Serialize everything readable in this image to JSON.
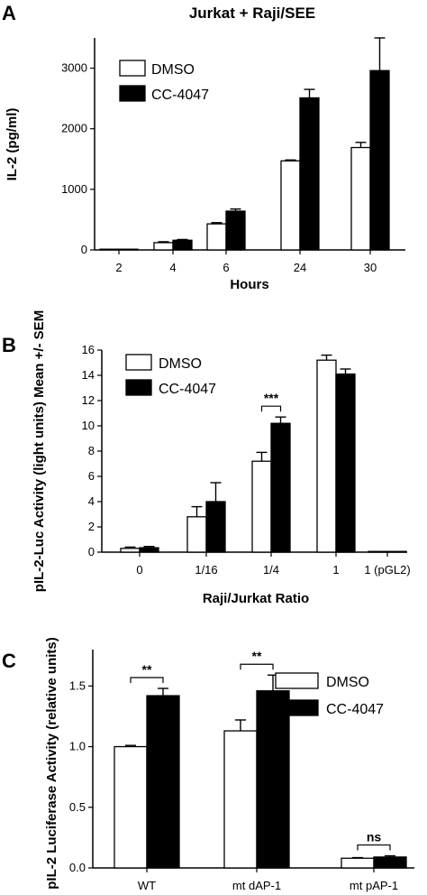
{
  "chart_data": [
    {
      "panel": "A",
      "type": "bar",
      "title": "Jurkat + Raji/SEE",
      "xlabel": "Hours",
      "ylabel": "IL-2 (pg/ml)",
      "ylim": [
        0,
        3500
      ],
      "yticks": [
        0,
        1000,
        2000,
        3000
      ],
      "categories": [
        "2",
        "4",
        "6",
        "24",
        "30"
      ],
      "legend_placement": "top-left",
      "series": [
        {
          "name": "DMSO",
          "color": "#ffffff",
          "values": [
            0,
            120,
            430,
            1470,
            1690
          ],
          "errors": [
            0,
            15,
            20,
            15,
            85
          ]
        },
        {
          "name": "CC-4047",
          "color": "#000000",
          "values": [
            0,
            160,
            640,
            2510,
            2960
          ],
          "errors": [
            0,
            12,
            35,
            140,
            540
          ]
        }
      ],
      "annotations": []
    },
    {
      "panel": "B",
      "type": "bar",
      "title": "",
      "xlabel": "Raji/Jurkat Ratio",
      "ylabel": "pIL-2-Luc Activity (light units) Mean +/- SEM",
      "ylim": [
        0,
        16
      ],
      "yticks": [
        0,
        2,
        4,
        6,
        8,
        10,
        12,
        14,
        16
      ],
      "categories": [
        "0",
        "1/16",
        "1/4",
        "1",
        "1 (pGL2)"
      ],
      "legend_placement": "top-left",
      "series": [
        {
          "name": "DMSO",
          "color": "#ffffff",
          "values": [
            0.3,
            2.8,
            7.2,
            15.2,
            0.05
          ],
          "errors": [
            0.1,
            0.8,
            0.7,
            0.4,
            0
          ]
        },
        {
          "name": "CC-4047",
          "color": "#000000",
          "values": [
            0.35,
            4.0,
            10.2,
            14.1,
            0.05
          ],
          "errors": [
            0.1,
            1.5,
            0.5,
            0.4,
            0
          ]
        }
      ],
      "annotations": [
        {
          "category_index": 2,
          "label": "***"
        }
      ]
    },
    {
      "panel": "C",
      "type": "bar",
      "title": "",
      "xlabel": "",
      "ylabel": "pIL-2 Luciferase Activity (relative units)",
      "ylim": [
        0,
        1.8
      ],
      "yticks": [
        0.0,
        0.5,
        1.0,
        1.5
      ],
      "ytick_labels": [
        "0.0",
        "0.5",
        "1.0",
        "1.5"
      ],
      "categories": [
        "WT",
        "mt dAP-1",
        "mt pAP-1"
      ],
      "legend_placement": "top-right",
      "series": [
        {
          "name": "DMSO",
          "color": "#ffffff",
          "values": [
            1.0,
            1.13,
            0.08
          ],
          "errors": [
            0.01,
            0.09,
            0.005
          ]
        },
        {
          "name": "CC-4047",
          "color": "#000000",
          "values": [
            1.42,
            1.46,
            0.09
          ],
          "errors": [
            0.06,
            0.13,
            0.01
          ]
        }
      ],
      "annotations": [
        {
          "category_index": 0,
          "label": "**"
        },
        {
          "category_index": 1,
          "label": "**"
        },
        {
          "category_index": 2,
          "label": "ns"
        }
      ]
    }
  ],
  "panel_letters": [
    "A",
    "B",
    "C"
  ]
}
